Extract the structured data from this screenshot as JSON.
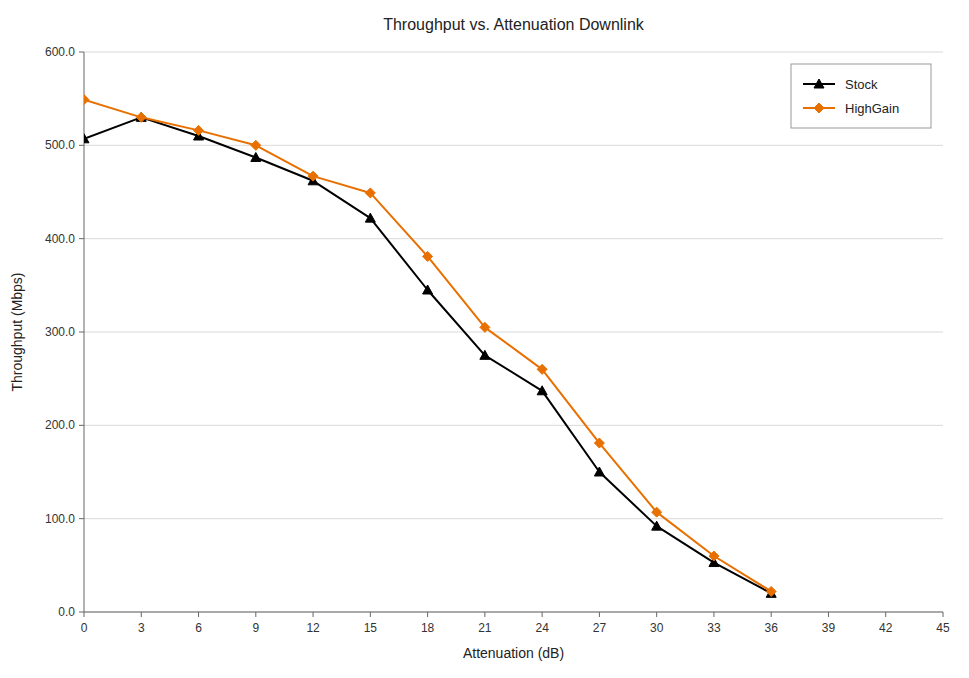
{
  "chart_data": {
    "type": "line",
    "title": "Throughput vs. Attenuation Downlink",
    "xlabel": "Attenuation (dB)",
    "ylabel": "Throughput (Mbps)",
    "x": [
      0,
      3,
      6,
      9,
      12,
      15,
      18,
      21,
      24,
      27,
      30,
      33,
      36
    ],
    "series": [
      {
        "name": "Stock",
        "color": "#000000",
        "marker": "triangle",
        "values": [
          507,
          530,
          510,
          487,
          462,
          422,
          345,
          275,
          237,
          150,
          92,
          53,
          20
        ]
      },
      {
        "name": "HighGain",
        "color": "#E87000",
        "marker": "diamond",
        "values": [
          549,
          530,
          516,
          500,
          467,
          449,
          381,
          305,
          260,
          181,
          107,
          60,
          22
        ]
      }
    ],
    "xlim": [
      0,
      45
    ],
    "xticks": [
      0,
      3,
      6,
      9,
      12,
      15,
      18,
      21,
      24,
      27,
      30,
      33,
      36,
      39,
      42,
      45
    ],
    "ylim": [
      0,
      600
    ],
    "yticks": [
      {
        "value": 0,
        "label": "0.0"
      },
      {
        "value": 100,
        "label": "100.0"
      },
      {
        "value": 200,
        "label": "200.0"
      },
      {
        "value": 300,
        "label": "300.0"
      },
      {
        "value": 400,
        "label": "400.0"
      },
      {
        "value": 500,
        "label": "500.0"
      },
      {
        "value": 600,
        "label": "600.0"
      }
    ],
    "grid": "y",
    "legend": "upper right"
  }
}
